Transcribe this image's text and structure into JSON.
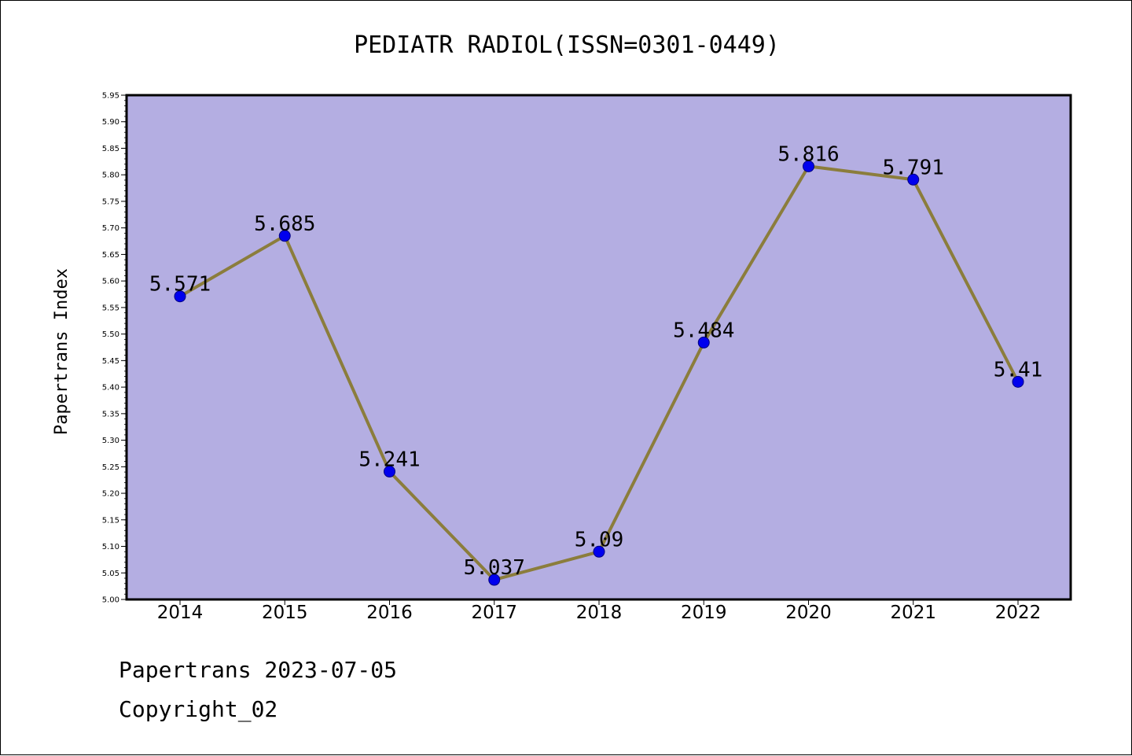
{
  "chart_data": {
    "type": "line",
    "title": "PEDIATR RADIOL(ISSN=0301-0449)",
    "ylabel": "Papertrans Index",
    "xlabel": "",
    "categories": [
      "2014",
      "2015",
      "2016",
      "2017",
      "2018",
      "2019",
      "2020",
      "2021",
      "2022"
    ],
    "values": [
      5.571,
      5.685,
      5.241,
      5.037,
      5.09,
      5.484,
      5.816,
      5.791,
      5.41
    ],
    "data_labels": [
      "5.571",
      "5.685",
      "5.241",
      "5.037",
      "5.09",
      "5.484",
      "5.816",
      "5.791",
      "5.41"
    ],
    "ylim": [
      5.0,
      5.95
    ],
    "yticks": [
      "5.00",
      "5.05",
      "5.10",
      "5.15",
      "5.20",
      "5.25",
      "5.30",
      "5.35",
      "5.40",
      "5.45",
      "5.50",
      "5.55",
      "5.60",
      "5.65",
      "5.70",
      "5.75",
      "5.80",
      "5.85",
      "5.90",
      "5.95"
    ],
    "grid": false,
    "legend": "none",
    "colors": {
      "plot_background": "#b4aee2",
      "line": "#8b7d3c",
      "marker": "#0000ee",
      "marker_edge": "#000080"
    }
  },
  "footer": {
    "date_line": "Papertrans 2023-07-05",
    "copyright": "Copyright_02"
  }
}
